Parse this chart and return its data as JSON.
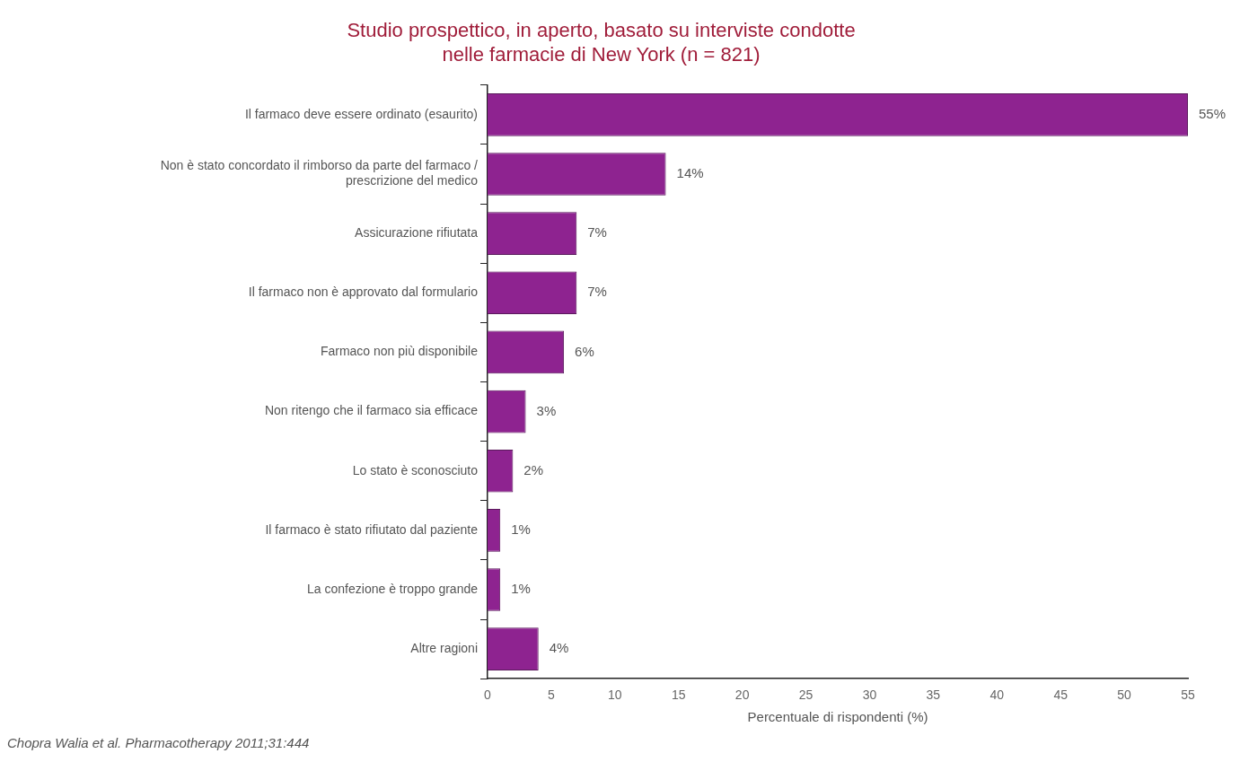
{
  "chart_data": {
    "type": "bar",
    "orientation": "horizontal",
    "title": "Studio prospettico, in aperto, basato su interviste condotte nelle farmacie di New York (n = 821)",
    "categories": [
      "Il farmaco deve essere ordinato (esaurito)",
      "Non è stato concordato il rimborso da parte del farmaco / prescrizione del medico",
      "Assicurazione rifiutata",
      "Il farmaco non è approvato dal formulario",
      "Farmaco non più disponibile",
      "Non ritengo che il farmaco sia efficace",
      "Lo stato è sconosciuto",
      "Il farmaco è stato rifiutato dal paziente",
      "La confezione è troppo grande",
      "Altre ragioni"
    ],
    "values": [
      55,
      14,
      7,
      7,
      6,
      3,
      2,
      1,
      1,
      4
    ],
    "value_labels": [
      "55%",
      "14%",
      "7%",
      "7%",
      "6%",
      "3%",
      "2%",
      "1%",
      "1%",
      "4%"
    ],
    "color": "#8e2390",
    "xlim": [
      0,
      55
    ],
    "xticks": [
      0,
      5,
      10,
      15,
      20,
      25,
      30,
      35,
      40,
      45,
      50,
      55
    ],
    "xlabel": "Percentuale di rispondenti (%)",
    "grid": false,
    "legend": false,
    "annotations": [
      "Chopra Walia et al. Pharmacotherapy 2011;31:444"
    ]
  }
}
